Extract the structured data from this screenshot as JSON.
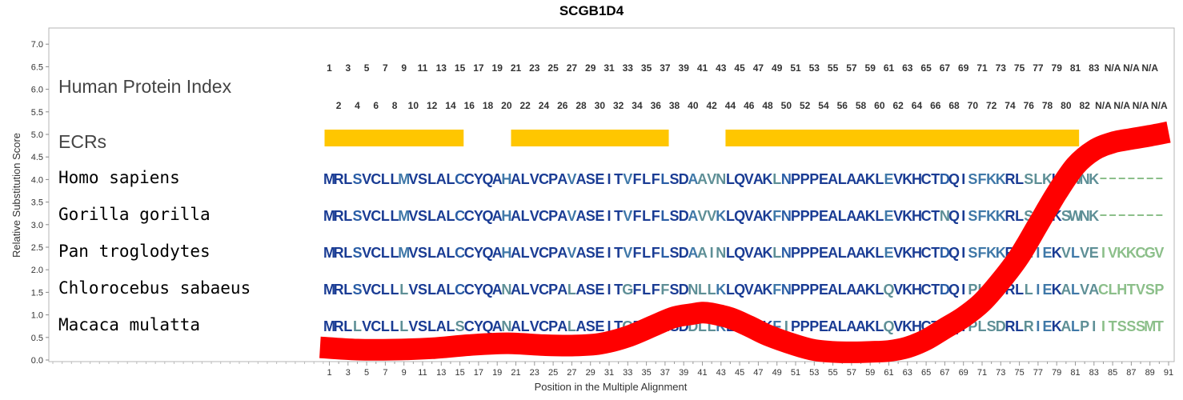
{
  "chart_data": {
    "type": "line",
    "title": "SCGB1D4",
    "xlabel": "Position in the Multiple Alignment",
    "ylabel": "Relative Substitution Score",
    "ylim": [
      0,
      7.3
    ],
    "yticks": [
      "0.0",
      "0.5",
      "1.0",
      "1.5",
      "2.0",
      "2.5",
      "3.0",
      "3.5",
      "4.0",
      "4.5",
      "5.0",
      "5.5",
      "6.0",
      "6.5",
      "7.0"
    ],
    "xticks": [
      "1",
      "3",
      "5",
      "7",
      "9",
      "11",
      "13",
      "15",
      "17",
      "19",
      "21",
      "23",
      "25",
      "27",
      "29",
      "31",
      "33",
      "35",
      "37",
      "39",
      "41",
      "43",
      "45",
      "47",
      "49",
      "51",
      "53",
      "55",
      "57",
      "59",
      "61",
      "63",
      "65",
      "67",
      "69",
      "71",
      "73",
      "75",
      "77",
      "79",
      "81",
      "83",
      "85",
      "87",
      "89",
      "91"
    ],
    "series": [
      {
        "color": "#ff0000",
        "x": [
          0,
          4,
          8,
          12,
          16,
          20,
          24,
          27,
          30,
          33,
          36,
          38,
          40,
          41,
          42,
          44,
          46,
          48,
          51,
          53,
          55,
          57,
          59,
          61,
          63,
          65,
          67,
          69,
          71,
          73,
          75,
          77,
          79,
          81,
          83,
          85,
          87,
          89,
          91
        ],
        "y": [
          0.28,
          0.23,
          0.23,
          0.26,
          0.33,
          0.37,
          0.33,
          0.32,
          0.36,
          0.52,
          0.78,
          0.95,
          1.02,
          1.05,
          1.03,
          0.93,
          0.75,
          0.55,
          0.33,
          0.22,
          0.18,
          0.17,
          0.18,
          0.2,
          0.28,
          0.45,
          0.7,
          0.95,
          1.28,
          1.75,
          2.3,
          3.0,
          3.7,
          4.3,
          4.65,
          4.82,
          4.9,
          4.97,
          5.05
        ]
      }
    ],
    "human_protein_index": {
      "top_row": [
        "1",
        "3",
        "5",
        "7",
        "9",
        "11",
        "13",
        "15",
        "17",
        "19",
        "21",
        "23",
        "25",
        "27",
        "29",
        "31",
        "33",
        "35",
        "37",
        "39",
        "41",
        "43",
        "45",
        "47",
        "49",
        "51",
        "53",
        "55",
        "57",
        "59",
        "61",
        "63",
        "65",
        "67",
        "69",
        "71",
        "73",
        "75",
        "77",
        "79",
        "81",
        "83",
        "N/A",
        "N/A",
        "N/A"
      ],
      "bottom_row": [
        "2",
        "4",
        "6",
        "8",
        "10",
        "12",
        "14",
        "16",
        "18",
        "20",
        "22",
        "24",
        "26",
        "28",
        "30",
        "32",
        "34",
        "36",
        "38",
        "40",
        "42",
        "44",
        "46",
        "48",
        "50",
        "52",
        "54",
        "56",
        "58",
        "60",
        "62",
        "64",
        "66",
        "68",
        "70",
        "72",
        "74",
        "76",
        "78",
        "80",
        "82",
        "N/A",
        "N/A",
        "N/A",
        "N/A"
      ]
    },
    "ecrs": [
      {
        "start": 1,
        "end": 15,
        "color": "#ffc600"
      },
      {
        "start": 21,
        "end": 37,
        "color": "#ffc600"
      },
      {
        "start": 44,
        "end": 81,
        "color": "#ffc600"
      }
    ],
    "row_labels": {
      "index": "Human Protein Index",
      "ecrs": "ECRs"
    },
    "alignment": [
      {
        "species": "Homo sapiens",
        "sequence": "MRLSVCLLMVSLALCCYQAHALVCPAVASEITVFLFLSDAAVNLQVAKLNPPPEALAAKLEVKHCTDQISFKKRLSLKKSWNK-------"
      },
      {
        "species": "Gorilla gorilla",
        "sequence": "MRLSVCLLMVSLALCCYQAHALVCPAVASEITVFLFLSDAVVKLQVAKFNPPPEALAAKLEVKHCTNQISFKKRLSLKKSWNK-------"
      },
      {
        "species": "Pan troglodytes",
        "sequence": "MRLSVCLLMVSLALCCYQAHALVCPAVASEITVFLFLSDAAINLQVAKLNPPPEALAAKLEVKHCTDQISFKKRLLIEKVLVEIVKKCGV"
      },
      {
        "species": "Chlorocebus sabaeus",
        "sequence": "MRLSVCLLLVSLALCCYQANALVCPALASEITGFLFFSDNLLKLQVAKFNPPPEALAAKLQVKHCTDQIPLSDRLLIEKALVACLHTVSP"
      },
      {
        "species": "Macaca mulatta",
        "sequence": "MRLLVCLLLVSLALSCYQANALVCPALASEITGFLFLSDDLLKLQVAKFIPPPEALAAKLQVKHCTDQIPLSDRLRIEKALPIITSSSMT"
      }
    ],
    "conservation_colors": [
      "#1a3c94",
      "#2a5ea6",
      "#3f78a8",
      "#5e8f96",
      "#8cbf8a"
    ],
    "grid": false
  }
}
